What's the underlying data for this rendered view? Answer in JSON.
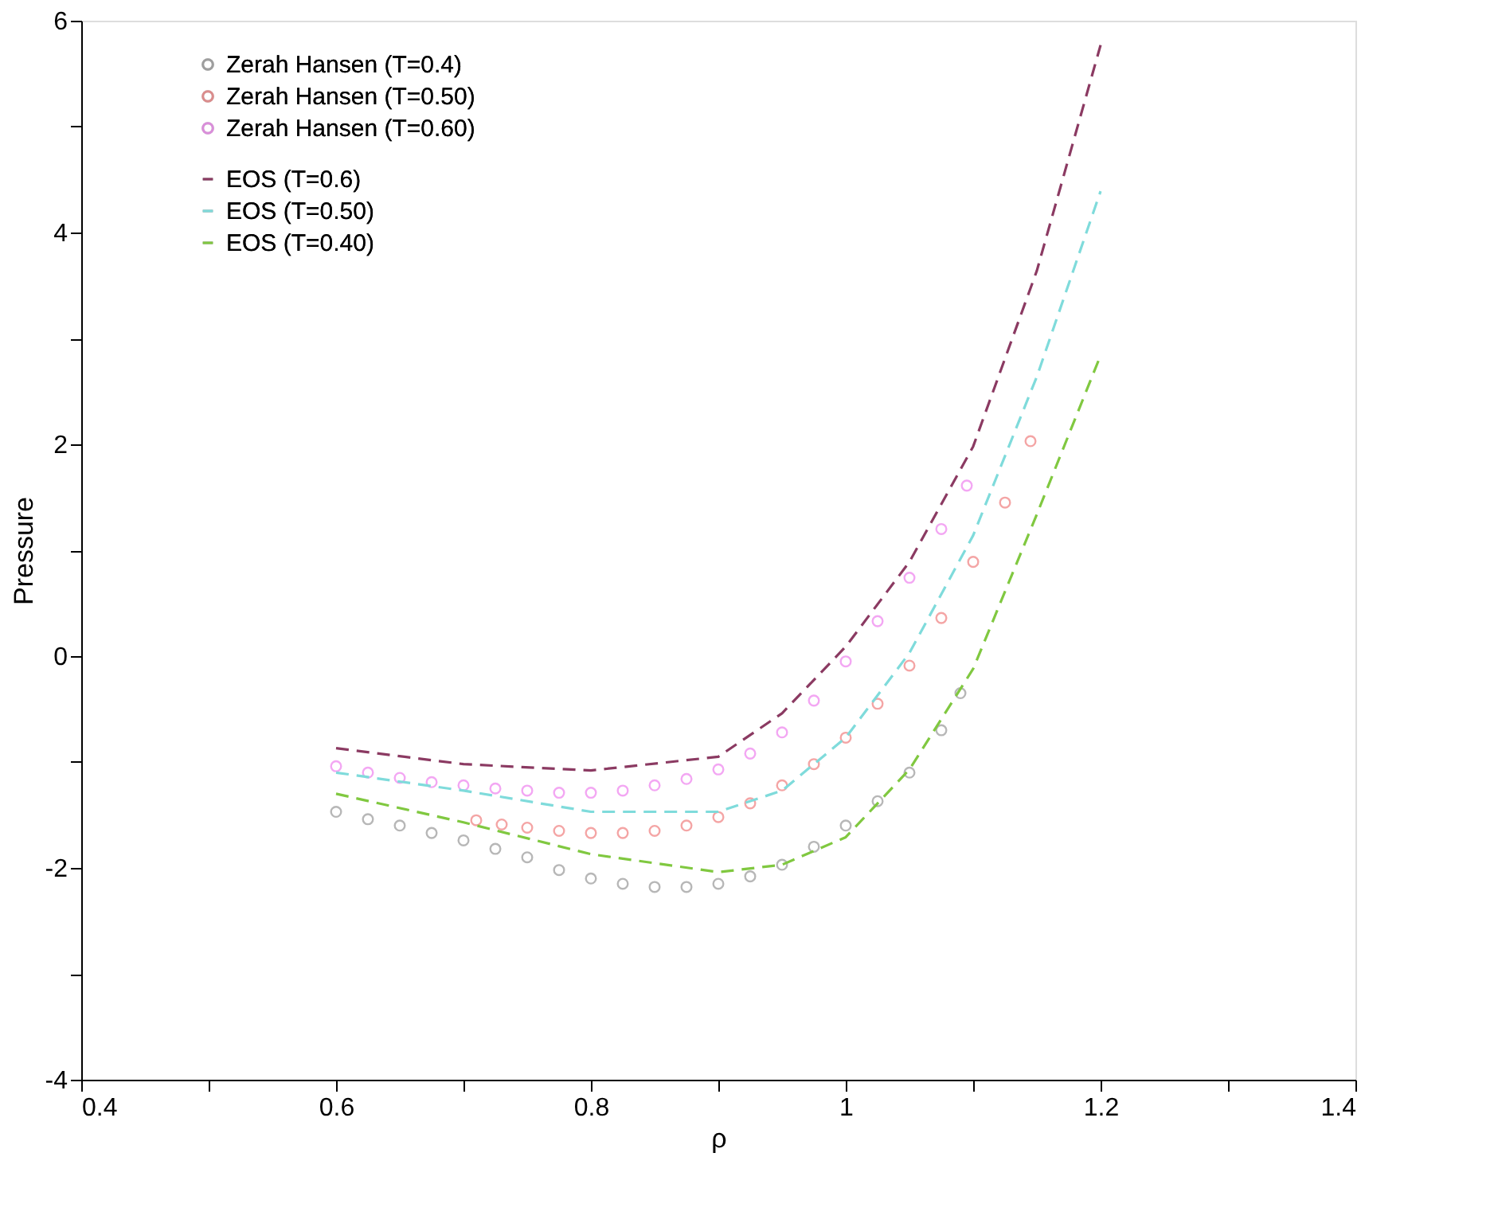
{
  "chart_data": {
    "type": "line",
    "xlabel": "ρ",
    "ylabel": "Pressure",
    "xlim": [
      0.4,
      1.4
    ],
    "ylim": [
      -4,
      6
    ],
    "xticks": [
      0.4,
      {
        "value": 0.5,
        "label": null
      },
      0.6,
      {
        "value": 0.7,
        "label": null
      },
      0.8,
      {
        "value": 0.9,
        "label": null
      },
      1,
      {
        "value": 1.1,
        "label": null
      },
      1.2,
      {
        "value": 1.3,
        "label": null
      },
      1.4
    ],
    "yticks": [
      -4,
      {
        "value": -3,
        "label": null
      },
      -2,
      {
        "value": -1,
        "label": null
      },
      0,
      {
        "value": 1,
        "label": null
      },
      2,
      {
        "value": 3,
        "label": null
      },
      4,
      {
        "value": 5,
        "label": null
      },
      6
    ],
    "grid": false,
    "legend": "top left",
    "series": [
      {
        "name": "Zerah Hansen (T=0.4)",
        "type": "scatter",
        "marker": "circle",
        "color": "#999999",
        "x": [
          0.6,
          0.625,
          0.65,
          0.675,
          0.7,
          0.725,
          0.75,
          0.775,
          0.8,
          0.825,
          0.85,
          0.875,
          0.9,
          0.925,
          0.95,
          0.975,
          1.0,
          1.025,
          1.05,
          1.075,
          1.09
        ],
        "values": [
          -1.47,
          -1.54,
          -1.6,
          -1.67,
          -1.74,
          -1.82,
          -1.9,
          -2.02,
          -2.1,
          -2.15,
          -2.18,
          -2.18,
          -2.15,
          -2.08,
          -1.97,
          -1.8,
          -1.6,
          -1.37,
          -1.1,
          -0.7,
          -0.35
        ]
      },
      {
        "name": "Zerah Hansen (T=0.50)",
        "type": "scatter",
        "marker": "circle",
        "color": "#f08080",
        "x": [
          0.71,
          0.73,
          0.75,
          0.775,
          0.8,
          0.825,
          0.85,
          0.875,
          0.9,
          0.925,
          0.95,
          0.975,
          1.0,
          1.025,
          1.05,
          1.075,
          1.1,
          1.125,
          1.145
        ],
        "values": [
          -1.55,
          -1.59,
          -1.62,
          -1.65,
          -1.67,
          -1.67,
          -1.65,
          -1.6,
          -1.52,
          -1.39,
          -1.22,
          -1.02,
          -0.77,
          -0.45,
          -0.09,
          0.36,
          0.89,
          1.45,
          2.03
        ]
      },
      {
        "name": "Zerah Hansen (T=0.60)",
        "type": "scatter",
        "marker": "circle",
        "color": "#ee82ee",
        "x": [
          0.6,
          0.625,
          0.65,
          0.675,
          0.7,
          0.725,
          0.75,
          0.775,
          0.8,
          0.825,
          0.85,
          0.875,
          0.9,
          0.925,
          0.95,
          0.975,
          1.0,
          1.025,
          1.05,
          1.075,
          1.095
        ],
        "values": [
          -1.04,
          -1.1,
          -1.15,
          -1.19,
          -1.22,
          -1.25,
          -1.27,
          -1.29,
          -1.29,
          -1.27,
          -1.22,
          -1.16,
          -1.07,
          -0.92,
          -0.72,
          -0.42,
          -0.05,
          0.33,
          0.74,
          1.2,
          1.61
        ]
      },
      {
        "name": "EOS (T=0.6)",
        "line_style": "dashed",
        "color": "#8b3a62",
        "x": [
          0.6,
          0.7,
          0.8,
          0.9,
          0.95,
          1.0,
          1.05,
          1.1,
          1.15,
          1.2
        ],
        "values": [
          -0.87,
          -1.02,
          -1.08,
          -0.95,
          -0.54,
          0.09,
          0.89,
          1.98,
          3.64,
          5.77
        ]
      },
      {
        "name": "EOS (T=0.50)",
        "line_style": "dashed",
        "color": "#7fdbdb",
        "x": [
          0.6,
          0.7,
          0.8,
          0.9,
          0.95,
          1.0,
          1.05,
          1.1,
          1.15,
          1.2
        ],
        "values": [
          -1.1,
          -1.27,
          -1.47,
          -1.47,
          -1.27,
          -0.77,
          0.03,
          1.14,
          2.64,
          4.39
        ]
      },
      {
        "name": "EOS (T=0.40)",
        "line_style": "dashed",
        "color": "#80c840",
        "x": [
          0.6,
          0.7,
          0.8,
          0.9,
          0.95,
          1.0,
          1.05,
          1.1,
          1.15,
          1.2
        ],
        "values": [
          -1.3,
          -1.57,
          -1.87,
          -2.04,
          -1.97,
          -1.71,
          -1.07,
          -0.12,
          1.34,
          2.84
        ]
      }
    ]
  }
}
